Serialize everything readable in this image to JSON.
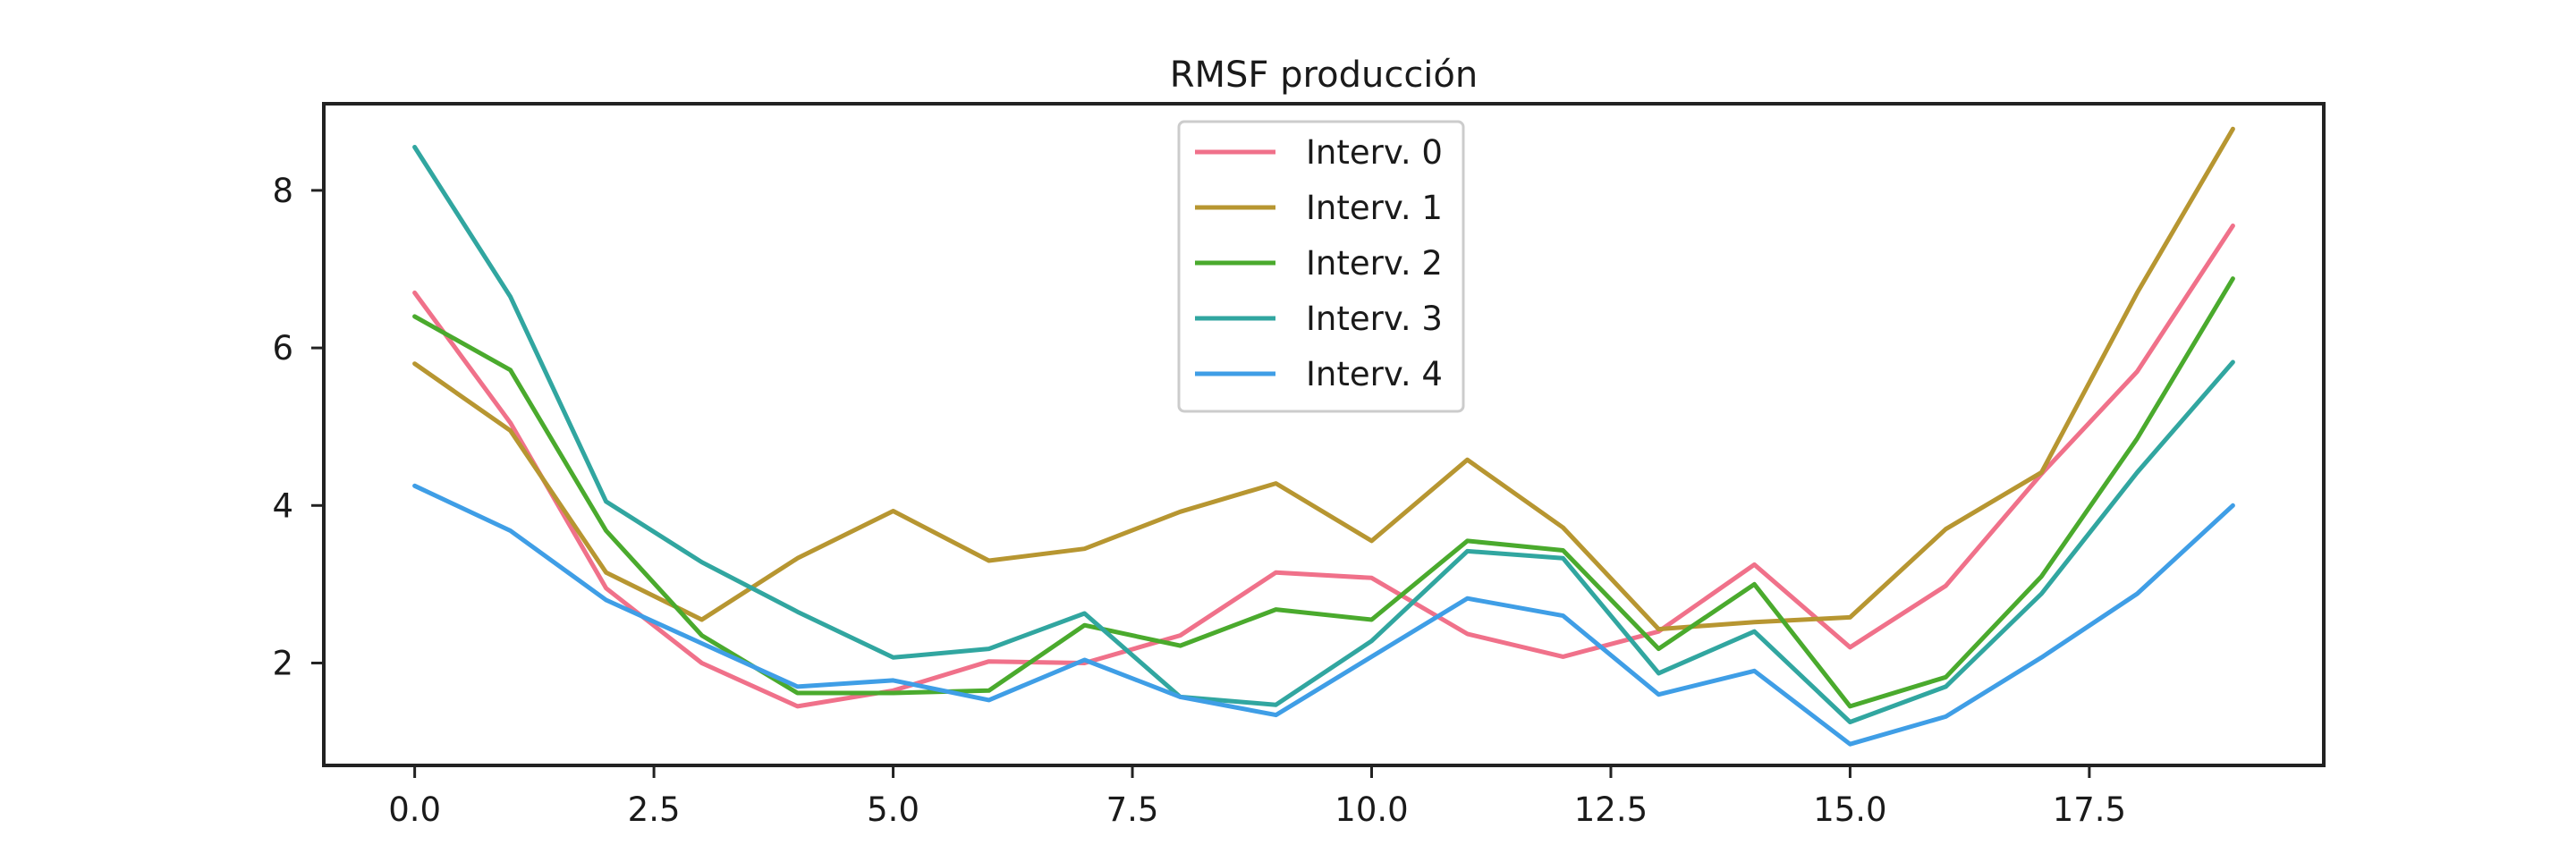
{
  "chart_data": {
    "type": "line",
    "title": "RMSF producción",
    "xlabel": "",
    "ylabel": "",
    "xlim": [
      -0.95,
      19.95
    ],
    "ylim": [
      0.7,
      9.1
    ],
    "x_ticks": [
      {
        "value": 0,
        "label": "0.0"
      },
      {
        "value": 2.5,
        "label": "2.5"
      },
      {
        "value": 5,
        "label": "5.0"
      },
      {
        "value": 7.5,
        "label": "7.5"
      },
      {
        "value": 10,
        "label": "10.0"
      },
      {
        "value": 12.5,
        "label": "12.5"
      },
      {
        "value": 15,
        "label": "15.0"
      },
      {
        "value": 17.5,
        "label": "17.5"
      }
    ],
    "y_ticks": [
      {
        "value": 2,
        "label": "2"
      },
      {
        "value": 4,
        "label": "4"
      },
      {
        "value": 6,
        "label": "6"
      },
      {
        "value": 8,
        "label": "8"
      }
    ],
    "grid": false,
    "legend_position": "top-center",
    "x": [
      0,
      1,
      2,
      3,
      4,
      5,
      6,
      7,
      8,
      9,
      10,
      11,
      12,
      13,
      14,
      15,
      16,
      17,
      18,
      19
    ],
    "series": [
      {
        "name": "Interv. 0",
        "color": "#f0718a",
        "values": [
          6.7,
          5.05,
          2.95,
          2.0,
          1.45,
          1.65,
          2.02,
          2.0,
          2.35,
          3.15,
          3.08,
          2.37,
          2.08,
          2.4,
          3.25,
          2.2,
          2.98,
          4.4,
          5.7,
          7.55
        ]
      },
      {
        "name": "Interv. 1",
        "color": "#b79631",
        "values": [
          5.8,
          4.95,
          3.15,
          2.55,
          3.33,
          3.93,
          3.3,
          3.45,
          3.92,
          4.28,
          3.55,
          4.58,
          3.72,
          2.43,
          2.52,
          2.58,
          3.7,
          4.42,
          6.7,
          8.78
        ]
      },
      {
        "name": "Interv. 2",
        "color": "#4aaa2d",
        "values": [
          6.4,
          5.72,
          3.68,
          2.35,
          1.62,
          1.62,
          1.65,
          2.48,
          2.22,
          2.68,
          2.55,
          3.55,
          3.43,
          2.18,
          3.0,
          1.45,
          1.82,
          3.1,
          4.85,
          6.88
        ]
      },
      {
        "name": "Interv. 3",
        "color": "#31a6a0",
        "values": [
          8.55,
          6.65,
          4.05,
          3.28,
          2.65,
          2.07,
          2.18,
          2.63,
          1.57,
          1.47,
          2.28,
          3.42,
          3.33,
          1.87,
          2.4,
          1.25,
          1.7,
          2.88,
          4.42,
          5.82
        ]
      },
      {
        "name": "Interv. 4",
        "color": "#3f9ee6",
        "values": [
          4.25,
          3.68,
          2.8,
          2.25,
          1.7,
          1.78,
          1.53,
          2.04,
          1.57,
          1.34,
          2.08,
          2.82,
          2.6,
          1.6,
          1.9,
          0.97,
          1.32,
          2.07,
          2.88,
          4.0
        ]
      }
    ]
  }
}
